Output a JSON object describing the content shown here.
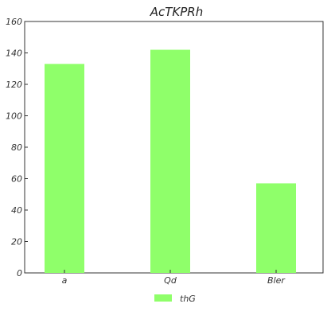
{
  "chart_data": {
    "type": "bar",
    "title": "AcTKPRh",
    "xlabel": "",
    "ylabel": "",
    "categories": [
      "a",
      "Qd",
      "Bler"
    ],
    "series": [
      {
        "name": "thG",
        "values": [
          133,
          142,
          57
        ]
      }
    ],
    "ylim": [
      0,
      160
    ],
    "yticks": [
      0,
      20,
      40,
      60,
      80,
      100,
      120,
      140,
      160
    ],
    "grid": false,
    "legend": "bottom-center",
    "colors": {
      "bar": "#8fff6a",
      "axis": "#333333"
    }
  }
}
